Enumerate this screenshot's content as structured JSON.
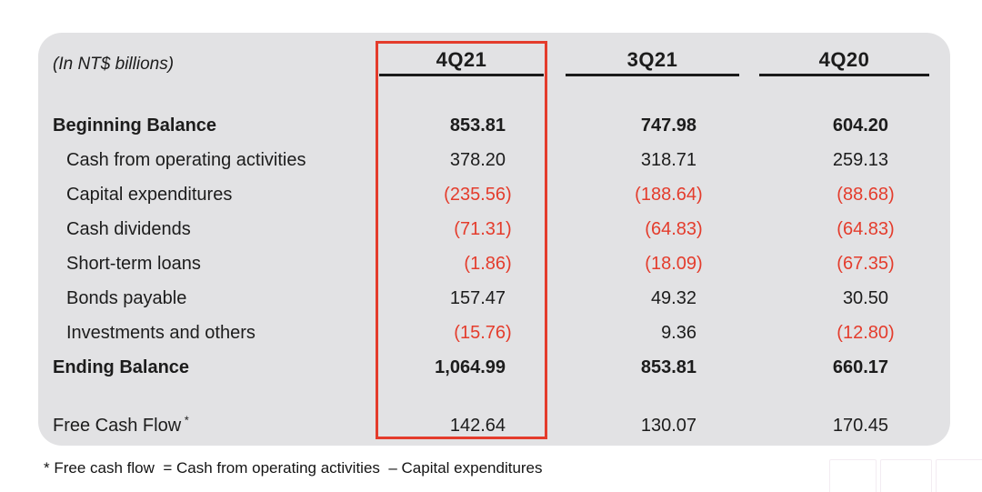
{
  "slide": {
    "unit_label": "(In NT$ billions)",
    "footnote": "* Free cash flow  = Cash from operating activities  – Capital expenditures"
  },
  "table": {
    "columns": [
      "4Q21",
      "3Q21",
      "4Q20"
    ],
    "highlighted_column": "4Q21",
    "rows": [
      {
        "label": "Beginning Balance",
        "bold": true,
        "indent": false,
        "values": [
          "853.81",
          "747.98",
          "604.20"
        ]
      },
      {
        "label": "Cash from operating activities",
        "bold": false,
        "indent": true,
        "values": [
          "378.20",
          "318.71",
          "259.13"
        ]
      },
      {
        "label": "Capital expenditures",
        "bold": false,
        "indent": true,
        "values": [
          "(235.56)",
          "(188.64)",
          "(88.68)"
        ]
      },
      {
        "label": "Cash dividends",
        "bold": false,
        "indent": true,
        "values": [
          "(71.31)",
          "(64.83)",
          "(64.83)"
        ]
      },
      {
        "label": "Short-term loans",
        "bold": false,
        "indent": true,
        "values": [
          "(1.86)",
          "(18.09)",
          "(67.35)"
        ]
      },
      {
        "label": "Bonds payable",
        "bold": false,
        "indent": true,
        "values": [
          "157.47",
          "49.32",
          "30.50"
        ]
      },
      {
        "label": "Investments and others",
        "bold": false,
        "indent": true,
        "values": [
          "(15.76)",
          "9.36",
          "(12.80)"
        ]
      },
      {
        "label": "Ending Balance",
        "bold": true,
        "indent": false,
        "values": [
          "1,064.99",
          "853.81",
          "660.17"
        ]
      },
      {
        "label": "Free Cash Flow",
        "sup": "*",
        "bold": false,
        "indent": false,
        "gap_before": true,
        "values": [
          "142.64",
          "130.07",
          "170.45"
        ]
      }
    ],
    "negative_format": "parentheses"
  },
  "colors": {
    "negative_text": "#e43c2c",
    "highlight_border": "#e43c2c",
    "panel_background": "#e2e2e4",
    "text": "#1c1c1c"
  }
}
